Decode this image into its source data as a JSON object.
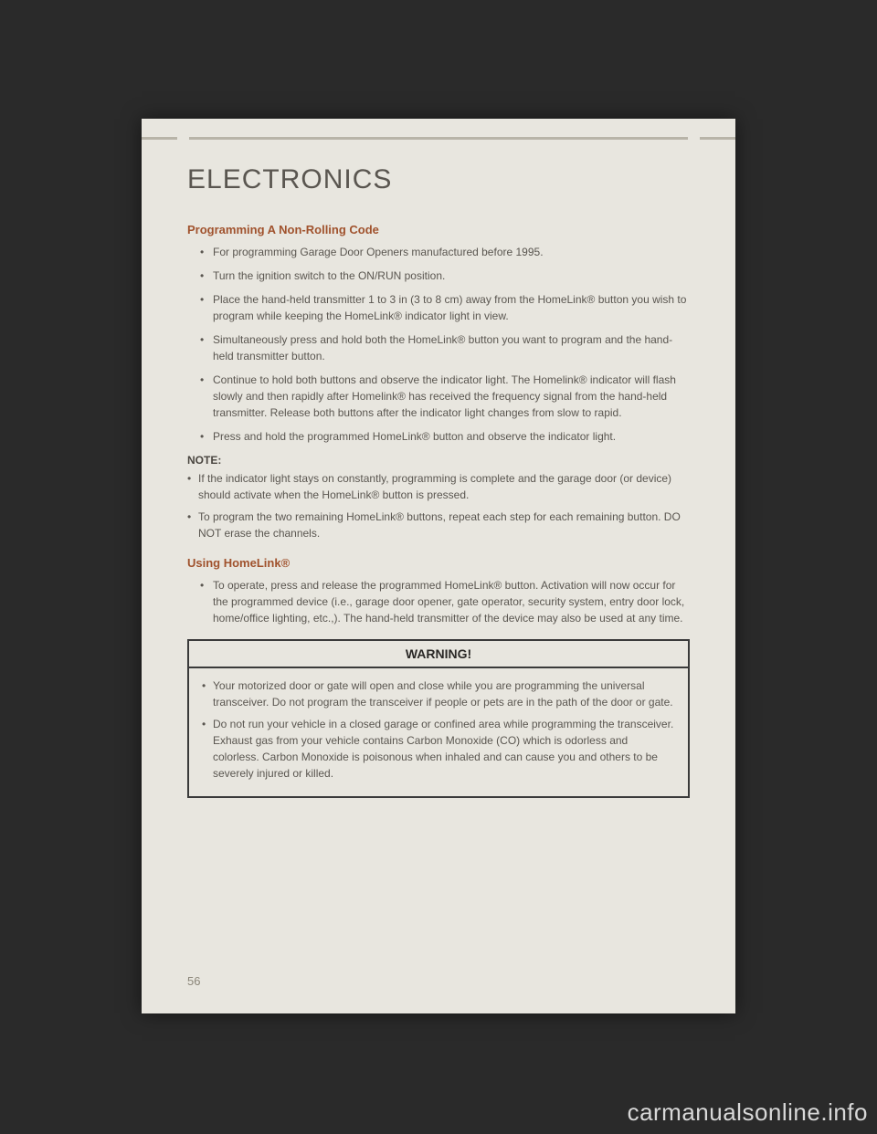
{
  "chapter": "ELECTRONICS",
  "section1": {
    "heading": "Programming A Non-Rolling Code",
    "items": [
      "For programming Garage Door Openers manufactured before 1995.",
      "Turn the ignition switch to the ON/RUN position.",
      "Place the hand-held transmitter 1 to 3 in (3 to 8 cm) away from the HomeLink® button you wish to program while keeping the HomeLink® indicator light in view.",
      "Simultaneously press and hold both the HomeLink® button you want to program and the hand-held transmitter button.",
      "Continue to hold both buttons and observe the indicator light. The Homelink® indicator will flash slowly and then rapidly after Homelink® has received the frequency signal from the hand-held transmitter. Release both buttons after the indicator light changes from slow to rapid.",
      "Press and hold the programmed HomeLink® button and observe the indicator light."
    ]
  },
  "note": {
    "label": "NOTE:",
    "items": [
      "If the indicator light stays on constantly, programming is complete and the garage door (or device) should activate when the HomeLink® button is pressed.",
      "To program the two remaining HomeLink® buttons, repeat each step for each remaining button. DO NOT erase the channels."
    ]
  },
  "section2": {
    "heading": "Using HomeLink®",
    "items": [
      "To operate, press and release the programmed HomeLink® button. Activation will now occur for the programmed device (i.e., garage door opener, gate operator, security system, entry door lock, home/office lighting, etc.,). The hand-held transmitter of the device may also be used at any time."
    ]
  },
  "warning": {
    "title": "WARNING!",
    "items": [
      "Your motorized door or gate will open and close while you are programming the universal transceiver. Do not program the transceiver if people or pets are in the path of the door or gate.",
      "Do not run your vehicle in a closed garage or confined area while programming the transceiver. Exhaust gas from your vehicle contains Carbon Monoxide (CO) which is odorless and colorless. Carbon Monoxide is poisonous when inhaled and can cause you and others to be severely injured or killed."
    ]
  },
  "pageNumber": "56",
  "watermark": "carmanualsonline.info"
}
